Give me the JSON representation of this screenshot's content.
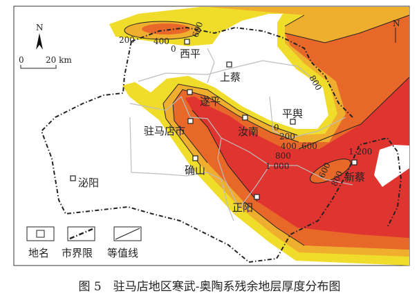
{
  "colors": {
    "yellow": "#f0dc2a",
    "amber": "#f0ae2e",
    "orange": "#e8682a",
    "red": "#e03430",
    "boundary": "#222222",
    "city_line": "#bdbdbd"
  },
  "north_label": "N",
  "scale": {
    "start": "0",
    "end": "20 km"
  },
  "places": [
    "西平",
    "上蔡",
    "遂平",
    "驻马店市",
    "汝南",
    "平舆",
    "确山",
    "泌阳",
    "正阳",
    "新蔡"
  ],
  "contour_labels": {
    "xiping_200": "200",
    "xiping_400": "400",
    "xiping_600": "600",
    "xiping_0": "0",
    "ne_800": "800",
    "c_0": "0",
    "c_200": "200",
    "c_400": "400",
    "c_600": "600",
    "c_800": "800",
    "c_1000": "1 000",
    "c_1200": "1 200",
    "x_600": "600",
    "x_800": "800"
  },
  "legend": {
    "place": "地名",
    "boundary": "市界限",
    "contour": "等值线"
  },
  "caption": "图 5　驻马店地区寒武-奥陶系残余地层厚度分布图"
}
